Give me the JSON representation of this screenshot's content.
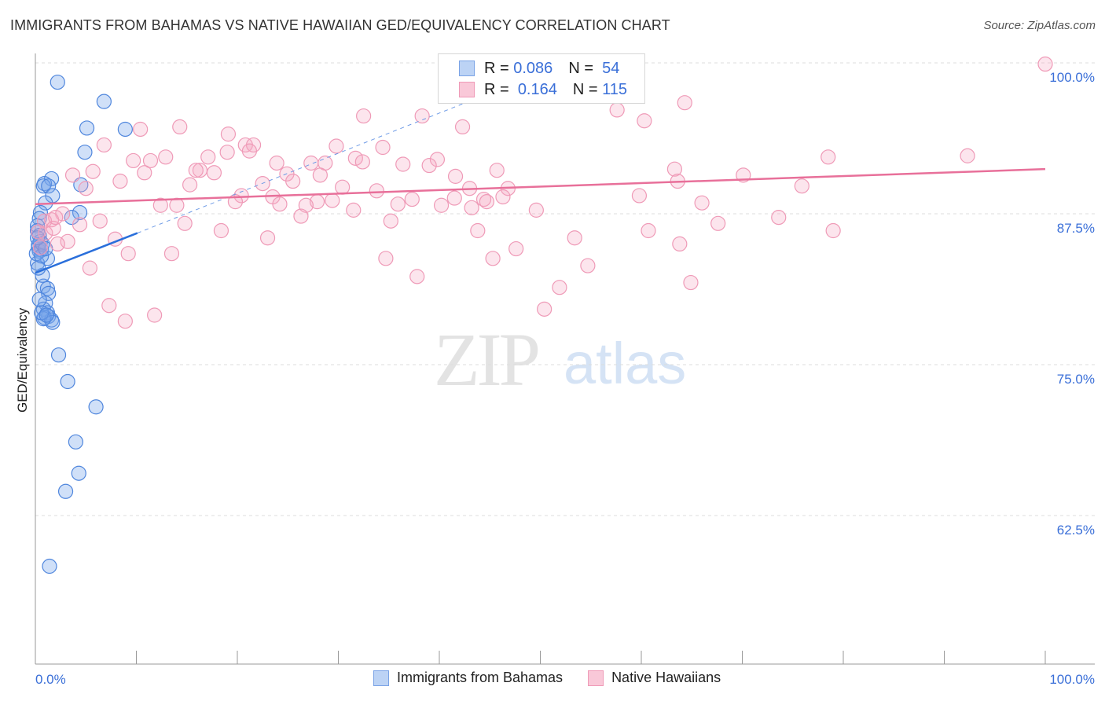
{
  "chart_data": {
    "type": "scatter",
    "title": "IMMIGRANTS FROM BAHAMAS VS NATIVE HAWAIIAN GED/EQUIVALENCY CORRELATION CHART",
    "source": "Source: ZipAtlas.com",
    "xlabel": "",
    "ylabel": "GED/Equivalency",
    "xlim": [
      0,
      100
    ],
    "ylim": [
      50,
      100
    ],
    "x_tick_labels": [
      "0.0%",
      "100.0%"
    ],
    "y_ticks": [
      100,
      87.5,
      75,
      62.5
    ],
    "y_tick_labels": [
      "100.0%",
      "87.5%",
      "75.0%",
      "62.5%"
    ],
    "grid": true,
    "legend_position": "top-center",
    "watermark": "ZIPatlas",
    "series": [
      {
        "name": "Immigrants from Bahamas",
        "color": "#5b8fe0",
        "R": "0.086",
        "N": "54",
        "trend": {
          "x0": 0,
          "y0": 82.6,
          "x1": 10.1,
          "y1": 85.9,
          "dash_to_x": 45,
          "dash_to_y": 97.5
        },
        "points": [
          [
            2.2,
            98.4
          ],
          [
            6.8,
            96.8
          ],
          [
            5.1,
            94.6
          ],
          [
            8.9,
            94.5
          ],
          [
            4.9,
            92.6
          ],
          [
            1.6,
            90.4
          ],
          [
            0.9,
            90.0
          ],
          [
            0.8,
            89.8
          ],
          [
            1.3,
            89.8
          ],
          [
            4.5,
            89.9
          ],
          [
            1.7,
            89.0
          ],
          [
            1.0,
            88.4
          ],
          [
            4.4,
            87.6
          ],
          [
            3.6,
            87.2
          ],
          [
            0.5,
            87.6
          ],
          [
            0.4,
            87.1
          ],
          [
            0.2,
            86.5
          ],
          [
            0.2,
            86.1
          ],
          [
            0.4,
            85.7
          ],
          [
            0.5,
            85.2
          ],
          [
            0.3,
            84.7
          ],
          [
            0.4,
            84.4
          ],
          [
            0.6,
            84.5
          ],
          [
            1.2,
            83.8
          ],
          [
            0.2,
            83.4
          ],
          [
            0.3,
            84.9
          ],
          [
            0.1,
            84.2
          ],
          [
            0.7,
            85.0
          ],
          [
            0.8,
            81.5
          ],
          [
            1.2,
            81.3
          ],
          [
            1.3,
            80.9
          ],
          [
            1.0,
            80.1
          ],
          [
            0.8,
            79.6
          ],
          [
            1.2,
            79.3
          ],
          [
            1.3,
            79.0
          ],
          [
            0.9,
            78.9
          ],
          [
            1.6,
            78.7
          ],
          [
            1.7,
            78.5
          ],
          [
            0.8,
            78.8
          ],
          [
            0.6,
            79.3
          ],
          [
            1.1,
            79.1
          ],
          [
            0.4,
            80.4
          ],
          [
            0.7,
            82.4
          ],
          [
            0.3,
            83.0
          ],
          [
            2.3,
            75.8
          ],
          [
            3.2,
            73.6
          ],
          [
            6.0,
            71.5
          ],
          [
            4.0,
            68.6
          ],
          [
            4.3,
            66.0
          ],
          [
            3.0,
            64.5
          ],
          [
            1.4,
            58.3
          ],
          [
            0.6,
            84.0
          ],
          [
            1.0,
            84.6
          ],
          [
            0.2,
            85.5
          ]
        ]
      },
      {
        "name": "Native Hawaiians",
        "color": "#ef8fb0",
        "R": "0.164",
        "N": "115",
        "trend": {
          "x0": 0,
          "y0": 88.3,
          "x1": 100,
          "y1": 91.2
        },
        "points": [
          [
            100,
            99.9
          ],
          [
            59.2,
            99.9
          ],
          [
            64.3,
            96.7
          ],
          [
            57.6,
            96.1
          ],
          [
            32.5,
            95.6
          ],
          [
            38.3,
            95.6
          ],
          [
            60.3,
            95.2
          ],
          [
            42.3,
            94.7
          ],
          [
            14.3,
            94.7
          ],
          [
            10.4,
            94.5
          ],
          [
            19.1,
            94.1
          ],
          [
            6.8,
            93.2
          ],
          [
            20.8,
            93.2
          ],
          [
            21.6,
            93.2
          ],
          [
            29.8,
            93.1
          ],
          [
            34.4,
            93.0
          ],
          [
            21.2,
            92.7
          ],
          [
            19.0,
            92.6
          ],
          [
            31.7,
            92.1
          ],
          [
            17.1,
            92.2
          ],
          [
            12.9,
            92.2
          ],
          [
            92.3,
            92.3
          ],
          [
            78.5,
            92.2
          ],
          [
            9.7,
            91.9
          ],
          [
            11.4,
            91.9
          ],
          [
            39.8,
            92.0
          ],
          [
            23.9,
            91.7
          ],
          [
            27.3,
            91.7
          ],
          [
            28.7,
            91.7
          ],
          [
            32.4,
            91.8
          ],
          [
            36.4,
            91.6
          ],
          [
            39.0,
            91.5
          ],
          [
            16.3,
            91.1
          ],
          [
            15.9,
            91.1
          ],
          [
            17.7,
            90.9
          ],
          [
            45.7,
            91.1
          ],
          [
            63.3,
            91.2
          ],
          [
            3.7,
            90.7
          ],
          [
            5.7,
            91.0
          ],
          [
            10.8,
            90.9
          ],
          [
            41.6,
            90.6
          ],
          [
            28.2,
            90.7
          ],
          [
            24.9,
            90.8
          ],
          [
            25.5,
            90.2
          ],
          [
            70.1,
            90.7
          ],
          [
            8.4,
            90.2
          ],
          [
            63.6,
            90.2
          ],
          [
            22.5,
            90.0
          ],
          [
            30.4,
            89.7
          ],
          [
            15.3,
            89.9
          ],
          [
            43.0,
            89.6
          ],
          [
            46.8,
            89.6
          ],
          [
            75.9,
            89.8
          ],
          [
            5.0,
            89.6
          ],
          [
            33.8,
            89.4
          ],
          [
            20.4,
            89.0
          ],
          [
            23.5,
            88.9
          ],
          [
            59.8,
            89.0
          ],
          [
            46.3,
            88.9
          ],
          [
            41.5,
            88.8
          ],
          [
            37.3,
            88.7
          ],
          [
            44.4,
            88.7
          ],
          [
            44.7,
            88.5
          ],
          [
            19.8,
            88.5
          ],
          [
            24.2,
            88.3
          ],
          [
            27.9,
            88.5
          ],
          [
            29.4,
            88.6
          ],
          [
            35.9,
            88.3
          ],
          [
            40.2,
            88.2
          ],
          [
            66.0,
            88.4
          ],
          [
            26.8,
            88.2
          ],
          [
            43.2,
            88.0
          ],
          [
            12.4,
            88.2
          ],
          [
            14.0,
            88.2
          ],
          [
            31.5,
            87.8
          ],
          [
            49.6,
            87.8
          ],
          [
            26.3,
            87.3
          ],
          [
            2.7,
            87.5
          ],
          [
            1.6,
            87.0
          ],
          [
            0.9,
            86.9
          ],
          [
            6.4,
            86.9
          ],
          [
            14.8,
            86.7
          ],
          [
            35.2,
            86.9
          ],
          [
            4.4,
            86.6
          ],
          [
            73.6,
            87.2
          ],
          [
            67.6,
            86.7
          ],
          [
            18.4,
            86.1
          ],
          [
            43.8,
            86.1
          ],
          [
            60.7,
            86.1
          ],
          [
            79.0,
            86.1
          ],
          [
            1.0,
            85.9
          ],
          [
            3.2,
            85.2
          ],
          [
            7.9,
            85.4
          ],
          [
            23.0,
            85.5
          ],
          [
            53.4,
            85.5
          ],
          [
            2.2,
            85.0
          ],
          [
            63.8,
            85.0
          ],
          [
            47.6,
            84.6
          ],
          [
            9.2,
            84.2
          ],
          [
            13.5,
            84.2
          ],
          [
            34.7,
            83.8
          ],
          [
            45.3,
            83.8
          ],
          [
            5.4,
            83.0
          ],
          [
            54.7,
            83.2
          ],
          [
            37.8,
            82.3
          ],
          [
            64.9,
            81.8
          ],
          [
            51.9,
            81.4
          ],
          [
            7.3,
            79.9
          ],
          [
            11.8,
            79.1
          ],
          [
            50.4,
            79.6
          ],
          [
            8.9,
            78.6
          ],
          [
            0.5,
            84.7
          ],
          [
            1.8,
            86.3
          ],
          [
            0.3,
            86.0
          ],
          [
            2.0,
            87.2
          ]
        ]
      }
    ]
  },
  "legend": {
    "r_label": "R =",
    "n_label": "N ="
  }
}
